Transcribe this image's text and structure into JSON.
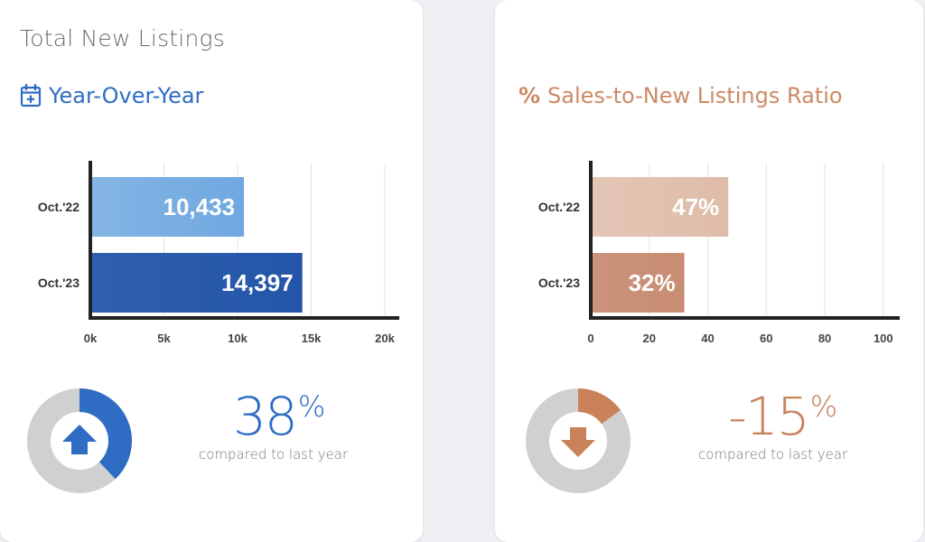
{
  "left_panel": {
    "page_title": "Total New Listings",
    "section_title": "Year-Over-Year",
    "change": {
      "number": "38",
      "unit": "%",
      "caption": "compared to last year",
      "donut_fraction": 0.38
    },
    "colors": {
      "accent": "#2f6dc4",
      "bar_light": "#6fa8e0",
      "bar_dark": "#2456a8",
      "donut_track": "#d0d0d0"
    }
  },
  "right_panel": {
    "section_icon": "%",
    "section_title": "Sales-to-New Listings Ratio",
    "change": {
      "number": "-15",
      "unit": "%",
      "caption": "compared to last year",
      "donut_fraction": 0.15
    },
    "colors": {
      "accent": "#c9825a",
      "bar_light": "#dfbca9",
      "bar_dark": "#c88d73",
      "donut_track": "#d0d0d0"
    }
  },
  "icons": {
    "left_section_icon": "calendar-plus-icon",
    "left_donut_icon": "arrow-up-icon",
    "right_donut_icon": "arrow-down-icon"
  },
  "chart_data": [
    {
      "type": "bar",
      "orientation": "horizontal",
      "categories": [
        "Oct.'22",
        "Oct.'23"
      ],
      "values": [
        10433,
        14397
      ],
      "data_labels": [
        "10,433",
        "14,397"
      ],
      "xlim": [
        0,
        20000
      ],
      "xticks": [
        0,
        5000,
        10000,
        15000,
        20000
      ],
      "xtick_labels": [
        "0k",
        "5k",
        "10k",
        "15k",
        "20k"
      ],
      "grid": true
    },
    {
      "type": "bar",
      "orientation": "horizontal",
      "categories": [
        "Oct.'22",
        "Oct.'23"
      ],
      "values": [
        47,
        32
      ],
      "data_labels": [
        "47%",
        "32%"
      ],
      "xlim": [
        0,
        105
      ],
      "xticks": [
        0,
        20,
        40,
        60,
        80,
        100
      ],
      "xtick_labels": [
        "0",
        "20",
        "40",
        "60",
        "80",
        "100"
      ],
      "grid": true
    }
  ]
}
